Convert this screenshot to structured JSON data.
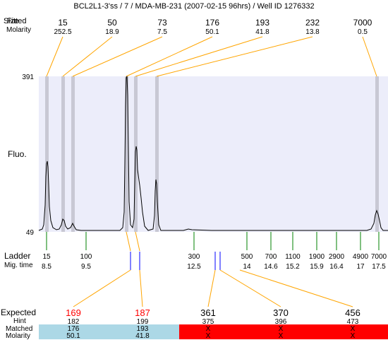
{
  "title": "BCL2L1-3'ss / 7 / MDA-MB-231 (2007-02-15 96hrs) / Well ID 1276332",
  "top_labels": {
    "size": "Size",
    "fitted": "Fitted",
    "molarity": "Molarity"
  },
  "top_peaks": [
    {
      "size": "15",
      "molarity": "252.5"
    },
    {
      "size": "50",
      "molarity": "18.9"
    },
    {
      "size": "73",
      "molarity": "7.5"
    },
    {
      "size": "176",
      "molarity": "50.1"
    },
    {
      "size": "193",
      "molarity": "41.8"
    },
    {
      "size": "232",
      "molarity": "13.8"
    },
    {
      "size": "7000",
      "molarity": "0.5"
    }
  ],
  "y_axis": {
    "label": "Fluo.",
    "max": "391",
    "min": "49"
  },
  "ladder": {
    "label": "Ladder",
    "time_label": "Mig. time",
    "sizes": [
      "15",
      "100",
      "300",
      "500",
      "700",
      "1100",
      "1900",
      "2900",
      "4900",
      "7000"
    ],
    "times": [
      "8.5",
      "9.5",
      "12.5",
      "14",
      "14.6",
      "15.2",
      "15.9",
      "16.4",
      "17",
      "17.5"
    ]
  },
  "expected": {
    "labels": {
      "expected": "Expected",
      "hint": "Hint",
      "matched": "Matched",
      "molarity": "Molarity"
    },
    "items": [
      {
        "expected": "169",
        "hint": "182",
        "matched": "176",
        "molarity": "50.1",
        "status": "matched"
      },
      {
        "expected": "187",
        "hint": "199",
        "matched": "193",
        "molarity": "41.8",
        "status": "matched"
      },
      {
        "expected": "361",
        "hint": "375",
        "matched": "X",
        "molarity": "X",
        "status": "unmatched"
      },
      {
        "expected": "370",
        "hint": "396",
        "matched": "X",
        "molarity": "X",
        "status": "unmatched"
      },
      {
        "expected": "456",
        "hint": "473",
        "matched": "X",
        "molarity": "X",
        "status": "unmatched"
      }
    ]
  },
  "colors": {
    "plot_background": "#ecedfa",
    "peak_band": "#c8c8d4",
    "connector": "#ffa500",
    "ladder_tick": "#008000",
    "marker": "#0000ff",
    "matched_fill": "#acd8e6",
    "unmatched_fill": "#ff0000",
    "highlight_text": "#ff0000"
  }
}
